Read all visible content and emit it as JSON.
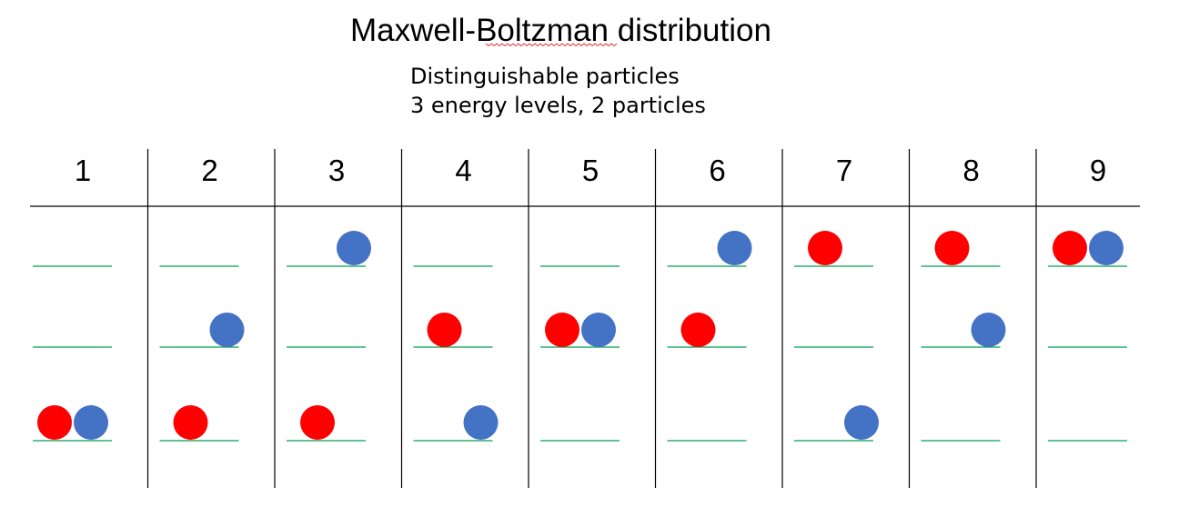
{
  "title": "Maxwell-Boltzman distribution",
  "subtitle_line1": "Distinguishable particles",
  "subtitle_line2": "3 energy levels, 2 particles",
  "colors": {
    "red_particle": "#ff0000",
    "blue_particle": "#4472c4",
    "energy_line": "#00a050",
    "divider": "#000000",
    "spellcheck_underline": "#e03030"
  },
  "columns": [
    {
      "label": "1",
      "levels": {
        "top": [],
        "middle": [],
        "bottom": [
          "red",
          "blue"
        ]
      }
    },
    {
      "label": "2",
      "levels": {
        "top": [],
        "middle": [
          "blue"
        ],
        "bottom": [
          "red"
        ]
      }
    },
    {
      "label": "3",
      "levels": {
        "top": [
          "blue"
        ],
        "middle": [],
        "bottom": [
          "red"
        ]
      }
    },
    {
      "label": "4",
      "levels": {
        "top": [],
        "middle": [
          "red"
        ],
        "bottom": [
          "blue"
        ]
      }
    },
    {
      "label": "5",
      "levels": {
        "top": [],
        "middle": [
          "red",
          "blue"
        ],
        "bottom": []
      }
    },
    {
      "label": "6",
      "levels": {
        "top": [
          "blue"
        ],
        "middle": [
          "red"
        ],
        "bottom": []
      }
    },
    {
      "label": "7",
      "levels": {
        "top": [
          "red"
        ],
        "middle": [],
        "bottom": [
          "blue"
        ]
      }
    },
    {
      "label": "8",
      "levels": {
        "top": [
          "red"
        ],
        "middle": [
          "blue"
        ],
        "bottom": []
      }
    },
    {
      "label": "9",
      "levels": {
        "top": [
          "red",
          "blue"
        ],
        "middle": [],
        "bottom": []
      }
    }
  ]
}
